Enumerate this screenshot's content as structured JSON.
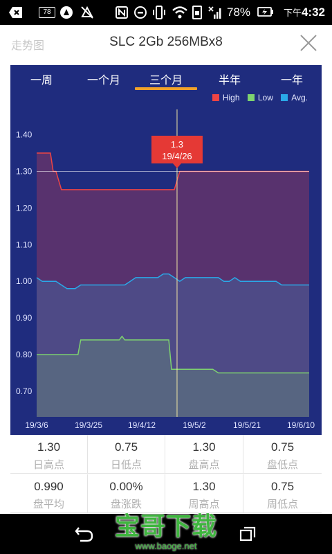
{
  "status_bar": {
    "notif_count": "78",
    "battery_percent": "78%",
    "time_prefix": "下午",
    "time": "4:32"
  },
  "header": {
    "left_label": "走势图",
    "title": "SLC 2Gb 256MBx8"
  },
  "tabs": [
    {
      "label": "一周",
      "selected": false
    },
    {
      "label": "一个月",
      "selected": false
    },
    {
      "label": "三个月",
      "selected": true
    },
    {
      "label": "半年",
      "selected": false
    },
    {
      "label": "一年",
      "selected": false
    }
  ],
  "tooltip": {
    "value": "1.3",
    "date": "19/4/26"
  },
  "colors": {
    "background": "#1f2c7e",
    "high": "#ee4444",
    "low": "#7ed36f",
    "avg": "#2aa9e8",
    "tab_underline": "#f0a22a",
    "tooltip_bg": "#e53935"
  },
  "chart_data": {
    "type": "area",
    "legend": [
      {
        "name": "High",
        "color": "#ee4444"
      },
      {
        "name": "Low",
        "color": "#7ed36f"
      },
      {
        "name": "Avg.",
        "color": "#2aa9e8"
      }
    ],
    "ylim": [
      0.63,
      1.42
    ],
    "y_ticks": [
      "1.40",
      "1.30",
      "1.20",
      "1.10",
      "1.00",
      "0.90",
      "0.80",
      "0.70"
    ],
    "x_ticks": [
      "19/3/6",
      "19/3/25",
      "19/4/12",
      "19/5/2",
      "19/5/21",
      "19/6/10"
    ],
    "x_days": 99,
    "crosshair_day": 51,
    "legend_position": "top-right",
    "series": [
      {
        "name": "High",
        "points": [
          [
            0,
            1.35
          ],
          [
            5,
            1.35
          ],
          [
            6,
            1.3
          ],
          [
            7,
            1.3
          ],
          [
            9,
            1.25
          ],
          [
            50,
            1.25
          ],
          [
            52,
            1.3
          ],
          [
            99,
            1.3
          ]
        ]
      },
      {
        "name": "Avg.",
        "points": [
          [
            0,
            1.01
          ],
          [
            2,
            1.0
          ],
          [
            7,
            1.0
          ],
          [
            9,
            0.99
          ],
          [
            11,
            0.98
          ],
          [
            14,
            0.98
          ],
          [
            16,
            0.99
          ],
          [
            32,
            0.99
          ],
          [
            34,
            1.0
          ],
          [
            36,
            1.01
          ],
          [
            44,
            1.01
          ],
          [
            46,
            1.02
          ],
          [
            48,
            1.02
          ],
          [
            50,
            1.01
          ],
          [
            52,
            1.0
          ],
          [
            54,
            1.01
          ],
          [
            66,
            1.01
          ],
          [
            68,
            1.0
          ],
          [
            70,
            1.0
          ],
          [
            72,
            1.01
          ],
          [
            74,
            1.0
          ],
          [
            87,
            1.0
          ],
          [
            89,
            0.99
          ],
          [
            99,
            0.99
          ]
        ]
      },
      {
        "name": "Low",
        "points": [
          [
            0,
            0.8
          ],
          [
            15,
            0.8
          ],
          [
            16,
            0.84
          ],
          [
            30,
            0.84
          ],
          [
            31,
            0.85
          ],
          [
            32,
            0.84
          ],
          [
            48,
            0.84
          ],
          [
            49,
            0.76
          ],
          [
            64,
            0.76
          ],
          [
            66,
            0.75
          ],
          [
            99,
            0.75
          ]
        ]
      }
    ]
  },
  "stats": [
    {
      "value": "1.30",
      "label": "日高点"
    },
    {
      "value": "0.75",
      "label": "日低点"
    },
    {
      "value": "1.30",
      "label": "盘高点"
    },
    {
      "value": "0.75",
      "label": "盘低点"
    },
    {
      "value": "0.990",
      "label": "盘平均"
    },
    {
      "value": "0.00%",
      "label": "盘涨跌"
    },
    {
      "value": "1.30",
      "label": "周高点"
    },
    {
      "value": "0.75",
      "label": "周低点"
    }
  ],
  "watermark": {
    "brand": "宝哥下载",
    "url": "www.baoge.net"
  }
}
